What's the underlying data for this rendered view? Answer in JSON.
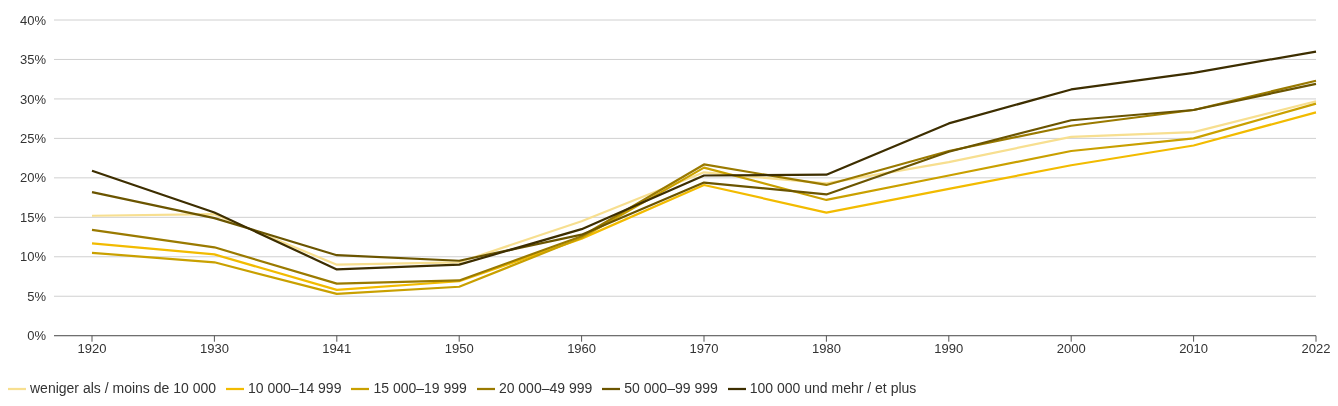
{
  "chart_data": {
    "type": "line",
    "categories": [
      "1920",
      "1930",
      "1941",
      "1950",
      "1960",
      "1970",
      "1980",
      "1990",
      "2000",
      "2010",
      "2022"
    ],
    "series": [
      {
        "name": "weniger als / moins de 10 000",
        "color": "#f7df90",
        "values": [
          15.2,
          15.4,
          9.0,
          9.3,
          14.5,
          20.7,
          19.3,
          22.0,
          25.2,
          25.8,
          29.7
        ]
      },
      {
        "name": "10 000–14 999",
        "color": "#f2bb00",
        "values": [
          11.7,
          10.3,
          5.8,
          6.9,
          12.3,
          19.1,
          15.6,
          18.6,
          21.6,
          24.1,
          28.3
        ]
      },
      {
        "name": "15 000–19 999",
        "color": "#c9a000",
        "values": [
          10.5,
          9.3,
          5.3,
          6.2,
          12.4,
          21.3,
          17.2,
          20.3,
          23.4,
          25.0,
          29.4
        ]
      },
      {
        "name": "20 000–49 999",
        "color": "#9a7a00",
        "values": [
          13.4,
          11.2,
          6.6,
          7.0,
          12.6,
          21.7,
          19.1,
          23.4,
          26.6,
          28.6,
          32.3
        ]
      },
      {
        "name": "50 000–99 999",
        "color": "#6b5500",
        "values": [
          18.2,
          14.9,
          10.2,
          9.5,
          12.8,
          19.4,
          17.9,
          23.3,
          27.3,
          28.6,
          31.9
        ]
      },
      {
        "name": "100 000 und mehr / et plus",
        "color": "#3d2e00",
        "values": [
          20.9,
          15.6,
          8.4,
          9.0,
          13.5,
          20.3,
          20.4,
          26.9,
          31.2,
          33.3,
          36.0
        ]
      }
    ],
    "ylim": [
      0,
      40
    ],
    "yticks": [
      {
        "value": 0,
        "label": "0%"
      },
      {
        "value": 5,
        "label": "5%"
      },
      {
        "value": 10,
        "label": "10%"
      },
      {
        "value": 15,
        "label": "15%"
      },
      {
        "value": 20,
        "label": "20%"
      },
      {
        "value": 25,
        "label": "25%"
      },
      {
        "value": 30,
        "label": "30%"
      },
      {
        "value": 35,
        "label": "35%"
      },
      {
        "value": 40,
        "label": "40%"
      }
    ],
    "grid": "y",
    "legend": "bottom left",
    "marker": "none",
    "line_style": "solid"
  }
}
